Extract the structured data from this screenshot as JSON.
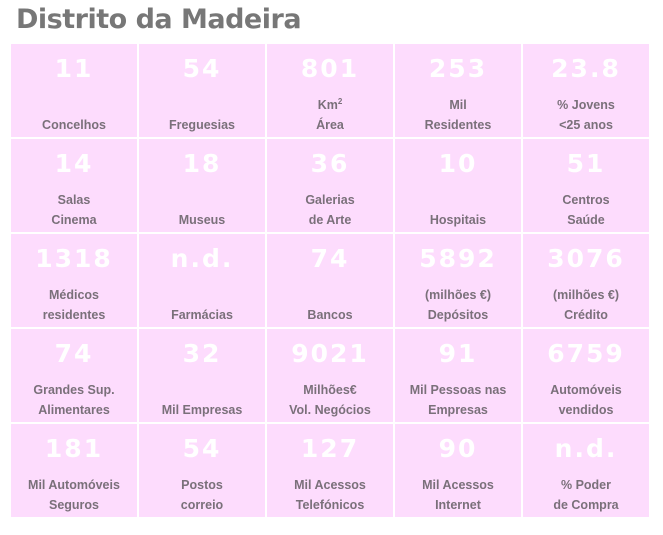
{
  "title": "Distrito da Madeira",
  "cells": [
    {
      "value": "11",
      "l1": "",
      "l2": "Concelhos"
    },
    {
      "value": "54",
      "l1": "",
      "l2": "Freguesias"
    },
    {
      "value": "801",
      "l1": "Km",
      "sup": "2",
      "l2": "Área"
    },
    {
      "value": "253",
      "l1": "Mil",
      "l2": "Residentes"
    },
    {
      "value": "23.8",
      "l1": "% Jovens",
      "l2": "<25 anos"
    },
    {
      "value": "14",
      "l1": "Salas",
      "l2": "Cinema"
    },
    {
      "value": "18",
      "l1": "",
      "l2": "Museus"
    },
    {
      "value": "36",
      "l1": "Galerias",
      "l2": "de Arte"
    },
    {
      "value": "10",
      "l1": "",
      "l2": "Hospitais"
    },
    {
      "value": "51",
      "l1": "Centros",
      "l2": "Saúde"
    },
    {
      "value": "1318",
      "l1": "Médicos",
      "l2": "residentes"
    },
    {
      "value": "n.d.",
      "l1": "",
      "l2": "Farmácias"
    },
    {
      "value": "74",
      "l1": "",
      "l2": "Bancos"
    },
    {
      "value": "5892",
      "l1": "(milhões €)",
      "l2": "Depósitos"
    },
    {
      "value": "3076",
      "l1": "(milhões €)",
      "l2": "Crédito"
    },
    {
      "value": "74",
      "l1": "Grandes Sup.",
      "l2": "Alimentares"
    },
    {
      "value": "32",
      "l1": "",
      "l2": "Mil Empresas"
    },
    {
      "value": "9021",
      "l1": "Milhões€",
      "l2": "Vol. Negócios"
    },
    {
      "value": "91",
      "l1": "Mil Pessoas nas",
      "l2": "Empresas"
    },
    {
      "value": "6759",
      "l1": "Automóveis",
      "l2": "vendidos"
    },
    {
      "value": "181",
      "l1": "Mil Automóveis",
      "l2": "Seguros"
    },
    {
      "value": "54",
      "l1": "Postos",
      "l2": "correio"
    },
    {
      "value": "127",
      "l1": "Mil Acessos",
      "l2": "Telefónicos"
    },
    {
      "value": "90",
      "l1": "Mil Acessos",
      "l2": "Internet"
    },
    {
      "value": "n.d.",
      "l1": "% Poder",
      "l2": "de Compra"
    }
  ]
}
